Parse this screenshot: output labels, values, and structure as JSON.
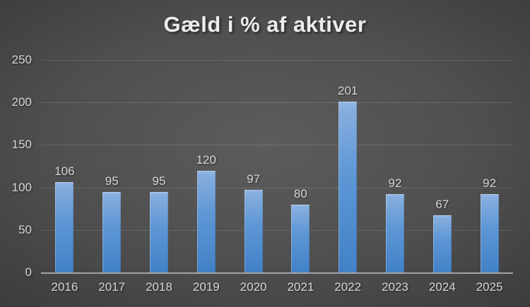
{
  "chart_data": {
    "type": "bar",
    "title": "Gæld i % af aktiver",
    "categories": [
      "2016",
      "2017",
      "2018",
      "2019",
      "2020",
      "2021",
      "2022",
      "2023",
      "2024",
      "2025"
    ],
    "values": [
      106,
      95,
      95,
      120,
      97,
      80,
      201,
      92,
      67,
      92
    ],
    "xlabel": "",
    "ylabel": "",
    "ylim": [
      0,
      250
    ],
    "yticks": [
      0,
      50,
      100,
      150,
      200,
      250
    ],
    "grid": true,
    "legend_position": "none",
    "data_labels": true
  },
  "colors": {
    "bar_top": "#87aede",
    "bar_bottom": "#4281c6",
    "title_text": "#ececec",
    "label_text": "#d6d6d6",
    "axis_line": "#a3a3a3",
    "grid_line": "rgba(255,255,255,0.13)",
    "background_center": "#5c5c5c",
    "background_edge": "#262626"
  }
}
